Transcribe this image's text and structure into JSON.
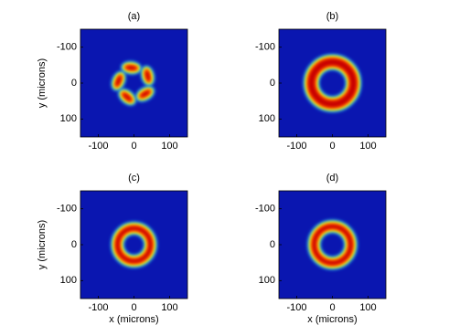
{
  "chart_data": [
    {
      "type": "heatmap",
      "title": "(a)",
      "ylabel": "y (microns)",
      "xlim": [
        -150,
        150
      ],
      "ylim": [
        -150,
        150
      ],
      "xticks": [
        -100,
        0,
        100
      ],
      "yticks": [
        -100,
        0,
        100
      ]
    },
    {
      "type": "heatmap",
      "title": "(b)",
      "xlim": [
        -150,
        150
      ],
      "ylim": [
        -150,
        150
      ],
      "xticks": [
        -100,
        0,
        100
      ],
      "yticks": [
        -100,
        0,
        100
      ]
    },
    {
      "type": "heatmap",
      "title": "(c)",
      "xlabel": "x (microns)",
      "ylabel": "y (microns)",
      "xlim": [
        -150,
        150
      ],
      "ylim": [
        -150,
        150
      ],
      "xticks": [
        -100,
        0,
        100
      ],
      "yticks": [
        -100,
        0,
        100
      ]
    },
    {
      "type": "heatmap",
      "title": "(d)",
      "xlabel": "x (microns)",
      "xlim": [
        -150,
        150
      ],
      "ylim": [
        -150,
        150
      ],
      "xticks": [
        -100,
        0,
        100
      ],
      "yticks": [
        -100,
        0,
        100
      ]
    }
  ]
}
